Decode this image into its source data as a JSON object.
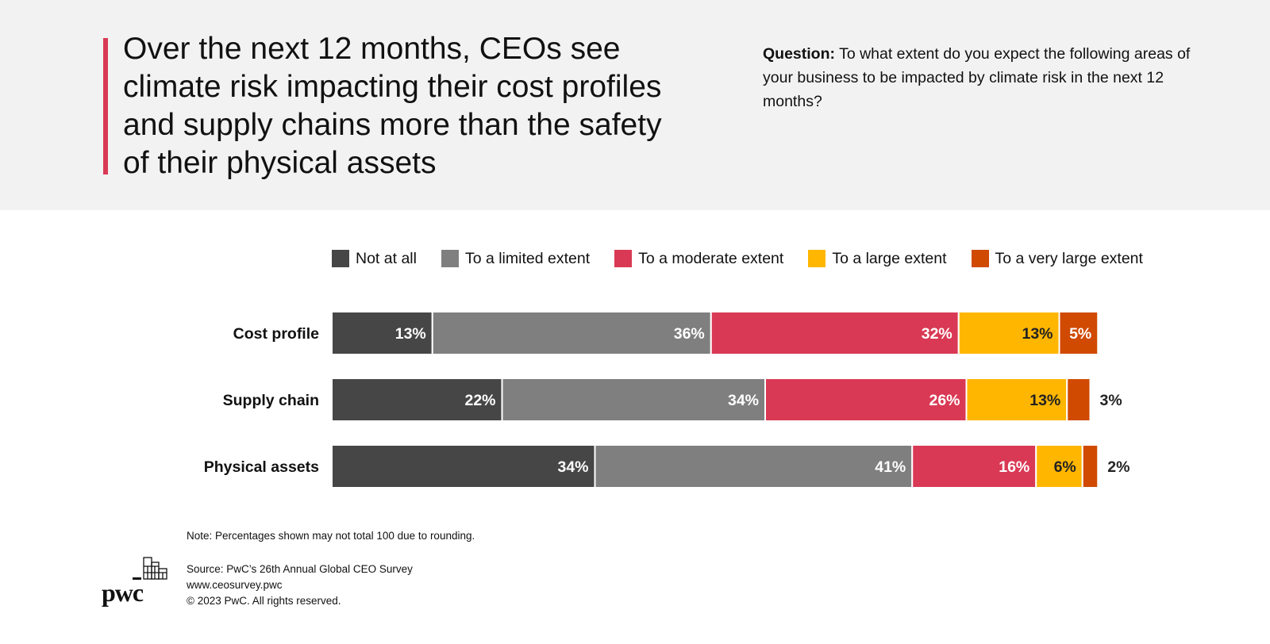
{
  "header": {
    "title": "Over the next 12 months, CEOs see climate risk impacting their cost profiles and supply chains more than the safety of their physical assets",
    "question_label": "Question:",
    "question_text": " To what extent do you expect the following areas of your business to be impacted by climate risk in the next 12 months?"
  },
  "colors": {
    "accent": "#d93954",
    "not_at_all": "#464646",
    "limited": "#7f7f7f",
    "moderate": "#d93954",
    "large": "#ffb600",
    "very_large": "#d04a02",
    "band": "#f2f2f2"
  },
  "chart_data": {
    "type": "bar",
    "orientation": "horizontal",
    "stacked": true,
    "unit": "%",
    "categories": [
      "Cost profile",
      "Supply chain",
      "Physical assets"
    ],
    "series": [
      {
        "name": "Not at all",
        "color": "#464646",
        "values": [
          13,
          22,
          34
        ]
      },
      {
        "name": "To a limited extent",
        "color": "#7f7f7f",
        "values": [
          36,
          34,
          41
        ]
      },
      {
        "name": "To a moderate extent",
        "color": "#d93954",
        "values": [
          32,
          26,
          16
        ]
      },
      {
        "name": "To a large extent",
        "color": "#ffb600",
        "values": [
          13,
          13,
          6
        ]
      },
      {
        "name": "To a very large extent",
        "color": "#d04a02",
        "values": [
          5,
          3,
          2
        ]
      }
    ],
    "legend_position": "top",
    "grid": false
  },
  "footer": {
    "note": "Note: Percentages shown may not total 100 due to rounding.",
    "source": "Source: PwC’s 26th Annual Global CEO Survey",
    "url": "www.ceosurvey.pwc",
    "copyright": "© 2023 PwC. All rights reserved.",
    "logo_text": "pwc"
  }
}
